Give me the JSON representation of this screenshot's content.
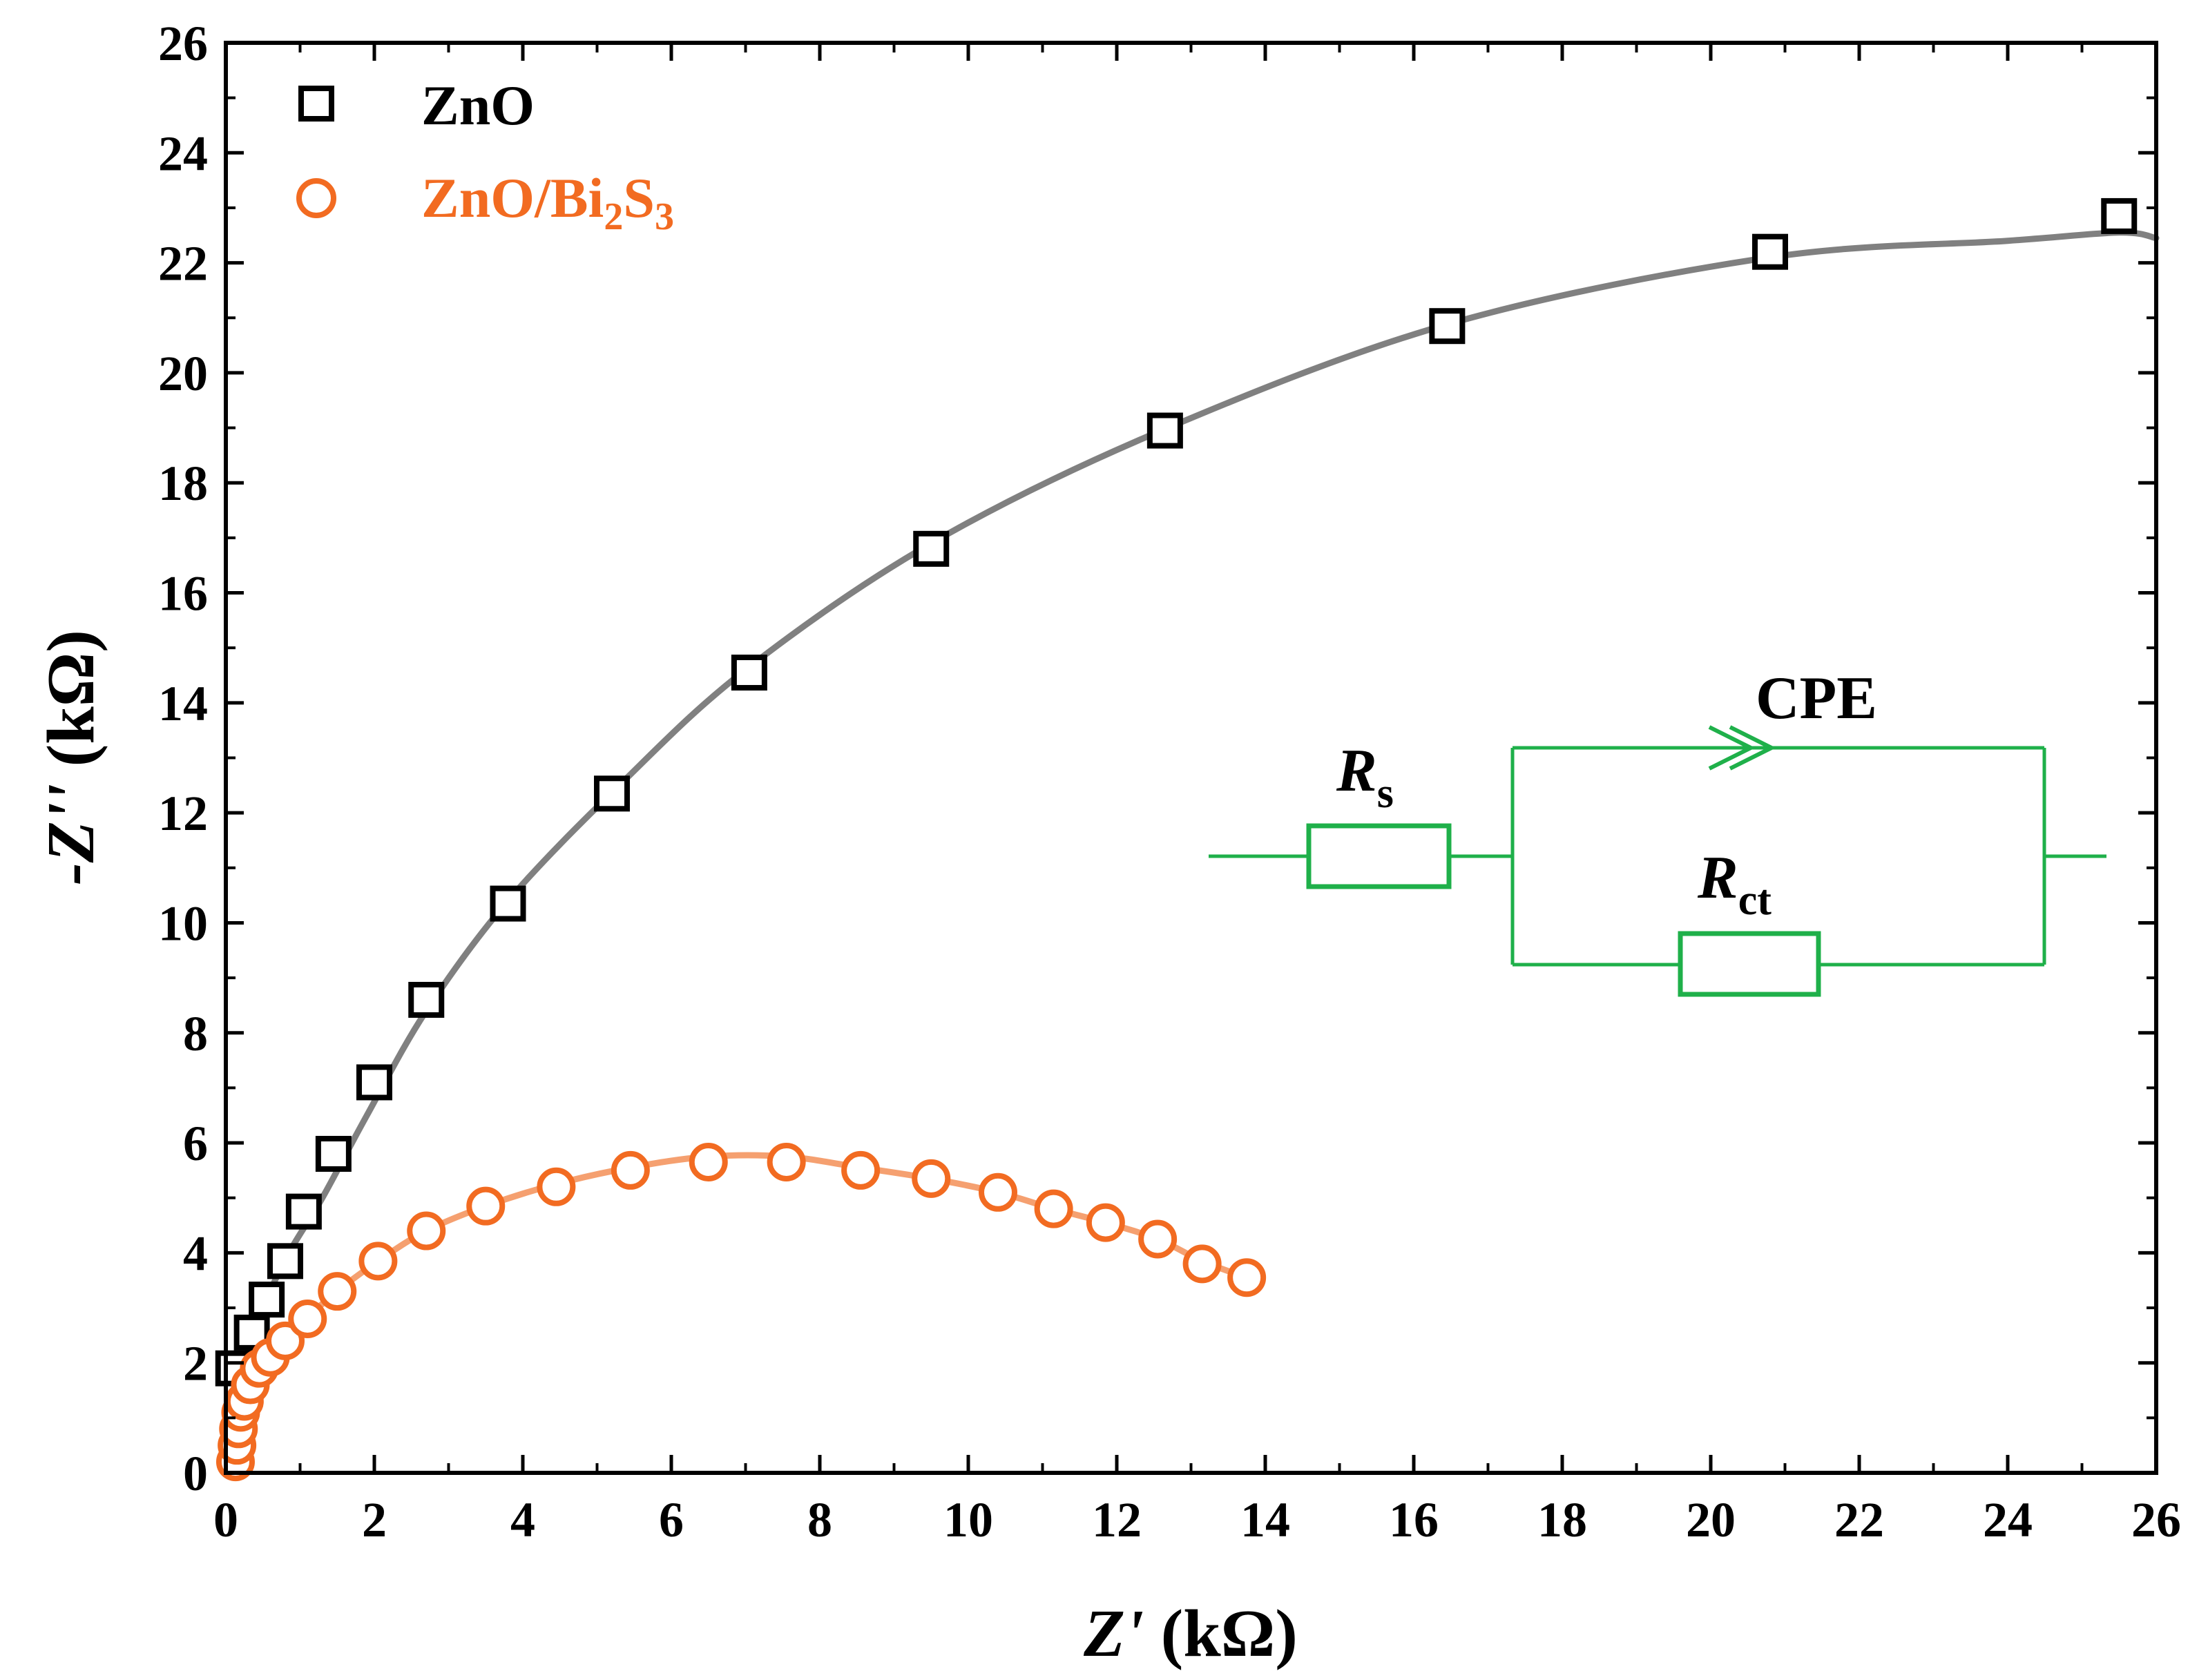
{
  "chart_data": {
    "type": "scatter",
    "xlabel": {
      "var": "Z'",
      "unit": " (kΩ)"
    },
    "ylabel": {
      "var": "-Z''",
      "unit": " (kΩ)"
    },
    "xlim": [
      0,
      26
    ],
    "ylim": [
      0,
      26
    ],
    "x_ticks": [
      0,
      2,
      4,
      6,
      8,
      10,
      12,
      14,
      16,
      18,
      20,
      22,
      24,
      26
    ],
    "y_ticks": [
      0,
      2,
      4,
      6,
      8,
      10,
      12,
      14,
      16,
      18,
      20,
      22,
      24,
      26
    ],
    "grid": false,
    "legend_position": "top-left",
    "colors": {
      "zno_marker": "#000000",
      "zno_fit": "#808080",
      "bi2s3_marker": "#f26b21",
      "bi2s3_fit": "#f5a070",
      "circuit": "#1fb04a"
    },
    "series": [
      {
        "name": "ZnO",
        "marker": "square",
        "points": [
          [
            0.1,
            1.9
          ],
          [
            0.35,
            2.55
          ],
          [
            0.55,
            3.15
          ],
          [
            0.8,
            3.85
          ],
          [
            1.05,
            4.75
          ],
          [
            1.45,
            5.8
          ],
          [
            2.0,
            7.1
          ],
          [
            2.7,
            8.6
          ],
          [
            3.8,
            10.35
          ],
          [
            5.2,
            12.35
          ],
          [
            7.05,
            14.55
          ],
          [
            9.5,
            16.8
          ],
          [
            12.65,
            18.95
          ],
          [
            16.45,
            20.85
          ],
          [
            20.8,
            22.2
          ],
          [
            25.5,
            22.85
          ]
        ],
        "fit": [
          [
            0.05,
            0
          ],
          [
            0.1,
            1.0
          ],
          [
            0.25,
            2.0
          ],
          [
            0.5,
            3.0
          ],
          [
            0.85,
            4.0
          ],
          [
            1.3,
            5.0
          ],
          [
            1.9,
            6.5
          ],
          [
            2.7,
            8.4
          ],
          [
            3.8,
            10.4
          ],
          [
            5.3,
            12.5
          ],
          [
            7.0,
            14.6
          ],
          [
            9.5,
            16.9
          ],
          [
            12.6,
            18.95
          ],
          [
            16.5,
            20.9
          ],
          [
            20.8,
            22.1
          ],
          [
            24.0,
            22.4
          ],
          [
            25.5,
            22.55
          ],
          [
            26.0,
            22.45
          ]
        ]
      },
      {
        "name": "ZnO/Bi",
        "name_sub1": "2",
        "name_mid": "S",
        "name_sub2": "3",
        "marker": "circle",
        "points": [
          [
            0.13,
            0.2
          ],
          [
            0.15,
            0.5
          ],
          [
            0.17,
            0.8
          ],
          [
            0.2,
            1.1
          ],
          [
            0.25,
            1.3
          ],
          [
            0.33,
            1.6
          ],
          [
            0.45,
            1.9
          ],
          [
            0.6,
            2.1
          ],
          [
            0.8,
            2.4
          ],
          [
            1.1,
            2.8
          ],
          [
            1.5,
            3.3
          ],
          [
            2.05,
            3.85
          ],
          [
            2.7,
            4.4
          ],
          [
            3.5,
            4.85
          ],
          [
            4.45,
            5.2
          ],
          [
            5.45,
            5.5
          ],
          [
            6.5,
            5.65
          ],
          [
            7.55,
            5.65
          ],
          [
            8.55,
            5.5
          ],
          [
            9.5,
            5.35
          ],
          [
            10.4,
            5.1
          ],
          [
            11.15,
            4.8
          ],
          [
            11.85,
            4.55
          ],
          [
            12.55,
            4.25
          ],
          [
            13.15,
            3.8
          ],
          [
            13.75,
            3.55
          ]
        ],
        "fit": [
          [
            0.13,
            0
          ],
          [
            0.15,
            0.5
          ],
          [
            0.2,
            1.0
          ],
          [
            0.35,
            1.6
          ],
          [
            0.6,
            2.1
          ],
          [
            1.0,
            2.7
          ],
          [
            1.5,
            3.3
          ],
          [
            2.05,
            3.85
          ],
          [
            2.7,
            4.4
          ],
          [
            3.5,
            4.85
          ],
          [
            4.45,
            5.25
          ],
          [
            5.45,
            5.55
          ],
          [
            6.5,
            5.75
          ],
          [
            7.55,
            5.75
          ],
          [
            8.55,
            5.55
          ],
          [
            9.5,
            5.35
          ],
          [
            10.4,
            5.1
          ],
          [
            11.15,
            4.8
          ],
          [
            11.85,
            4.55
          ],
          [
            12.55,
            4.25
          ],
          [
            13.15,
            3.85
          ],
          [
            13.75,
            3.55
          ]
        ]
      }
    ],
    "inset_circuit": {
      "rs_label": "R",
      "rs_sub": "s",
      "cpe_label": "CPE",
      "rct_label": "R",
      "rct_sub": "ct"
    }
  }
}
